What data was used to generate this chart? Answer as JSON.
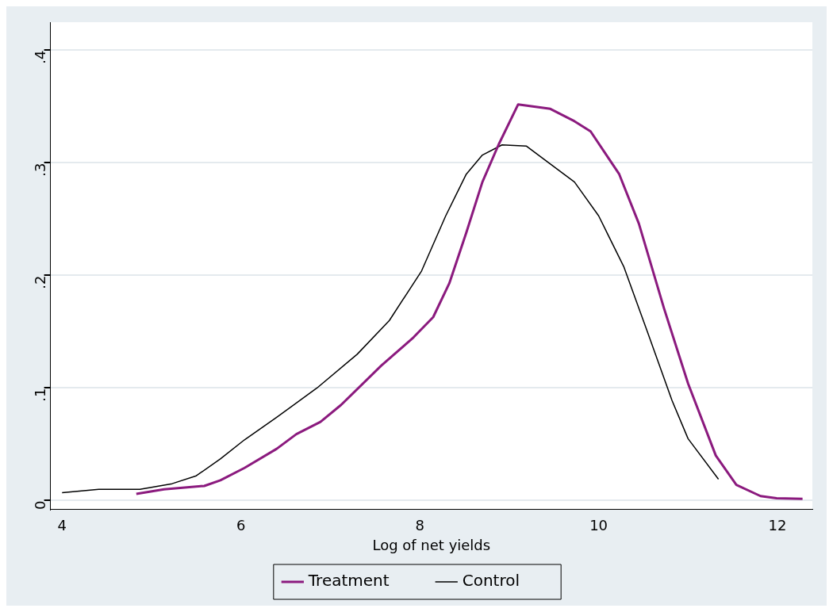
{
  "chart_data": {
    "type": "line",
    "xlabel": "Log of net yields",
    "xlim": [
      3.87,
      12.39
    ],
    "ylim": [
      -0.008,
      0.425
    ],
    "xticks": [
      4,
      6,
      8,
      10,
      12
    ],
    "yticks": [
      0,
      {
        "value": 0.1,
        "label": ".1"
      },
      {
        "value": 0.2,
        "label": ".2"
      },
      {
        "value": 0.3,
        "label": ".3"
      },
      {
        "value": 0.4,
        "label": ".4"
      }
    ],
    "grid": "y",
    "legend": "bottom",
    "marker": "none",
    "series": [
      {
        "name": "Treatment",
        "color": "#8b1a7e",
        "x": [
          4.83,
          5.14,
          5.59,
          5.77,
          6.04,
          6.4,
          6.62,
          6.89,
          7.12,
          7.57,
          7.93,
          8.15,
          8.33,
          8.52,
          8.7,
          8.88,
          9.1,
          9.46,
          9.73,
          9.91,
          10.23,
          10.45,
          10.73,
          11.0,
          11.31,
          11.54,
          11.81,
          11.99,
          12.28
        ],
        "values": [
          0.006,
          0.01,
          0.013,
          0.018,
          0.029,
          0.046,
          0.059,
          0.07,
          0.085,
          0.12,
          0.145,
          0.163,
          0.193,
          0.238,
          0.283,
          0.316,
          0.352,
          0.348,
          0.337,
          0.328,
          0.29,
          0.246,
          0.171,
          0.104,
          0.04,
          0.014,
          0.004,
          0.002,
          0.0015
        ]
      },
      {
        "name": "Control",
        "color": "#000000",
        "x": [
          4.0,
          4.41,
          4.87,
          5.23,
          5.5,
          5.77,
          6.04,
          6.4,
          6.85,
          7.3,
          7.66,
          8.02,
          8.29,
          8.52,
          8.7,
          8.92,
          9.19,
          9.46,
          9.73,
          10.0,
          10.28,
          10.55,
          10.82,
          11.0,
          11.34
        ],
        "values": [
          0.007,
          0.01,
          0.01,
          0.015,
          0.022,
          0.037,
          0.054,
          0.074,
          0.1,
          0.13,
          0.16,
          0.204,
          0.253,
          0.29,
          0.307,
          0.316,
          0.315,
          0.299,
          0.283,
          0.253,
          0.208,
          0.149,
          0.089,
          0.055,
          0.019
        ]
      }
    ]
  }
}
